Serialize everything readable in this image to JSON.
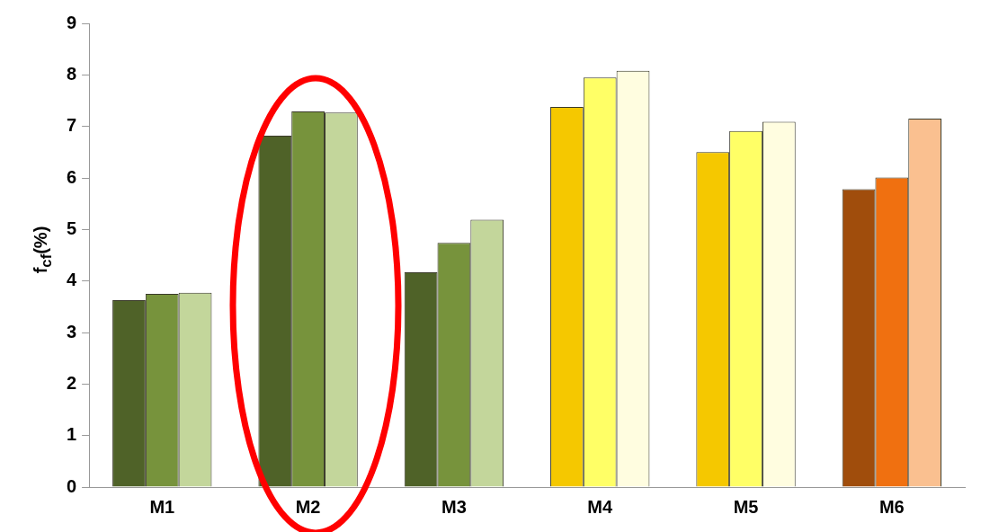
{
  "chart_data": {
    "type": "bar",
    "ylabel": "f$_{cf}$(%)",
    "categories": [
      "M1",
      "M2",
      "M3",
      "M4",
      "M5",
      "M6"
    ],
    "series": [
      {
        "colors": [
          "#4f6228",
          "#4f6228",
          "#4f6228",
          "#f5c800",
          "#f5c800",
          "#a04d0c"
        ],
        "values": [
          3.63,
          6.82,
          4.17,
          7.38,
          6.5,
          5.78
        ]
      },
      {
        "colors": [
          "#77933c",
          "#77933c",
          "#77933c",
          "#ffff66",
          "#ffff66",
          "#f07010"
        ],
        "values": [
          3.75,
          7.29,
          4.74,
          7.95,
          6.91,
          6.01
        ]
      },
      {
        "colors": [
          "#c3d69b",
          "#c3d69b",
          "#c3d69b",
          "#fffde0",
          "#fffde0",
          "#fac090"
        ],
        "values": [
          3.77,
          7.27,
          5.19,
          8.08,
          7.09,
          7.15
        ]
      }
    ],
    "ylim": [
      0,
      9
    ],
    "yticks": [
      0,
      1,
      2,
      3,
      4,
      5,
      6,
      7,
      8,
      9
    ],
    "grid": false,
    "legend": false
  }
}
